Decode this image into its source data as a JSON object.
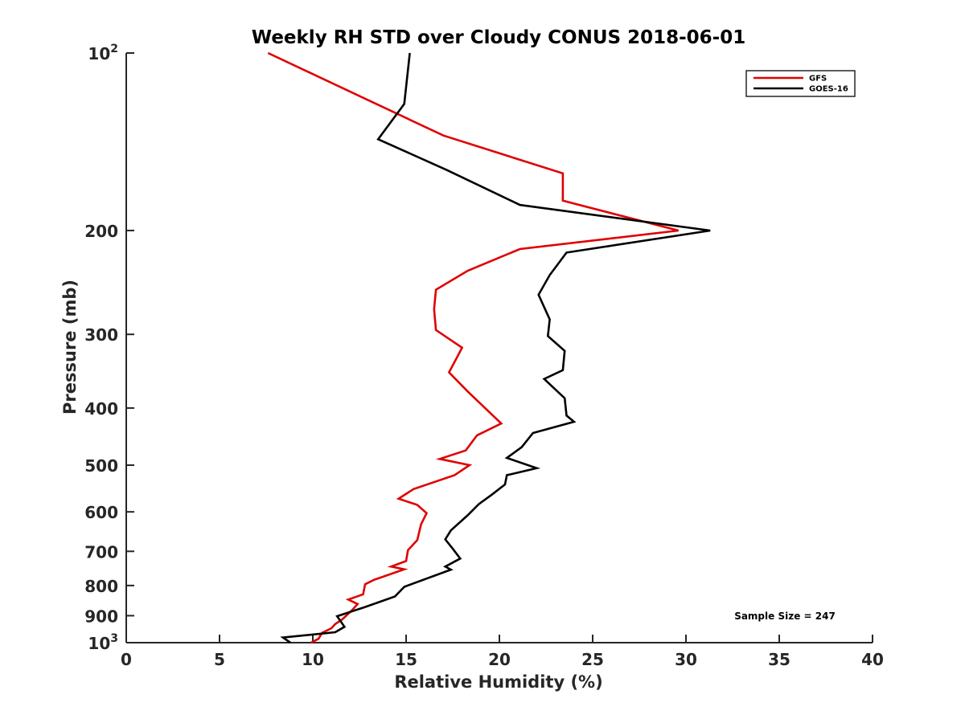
{
  "chart_data": {
    "type": "line",
    "title": "Weekly RH STD over Cloudy CONUS 2018-06-01",
    "xlabel": "Relative Humidity (%)",
    "ylabel": "Pressure (mb)",
    "xlim": [
      0,
      40
    ],
    "ylim": [
      100,
      1000
    ],
    "y_scale": "log",
    "y_reversed": true,
    "grid": false,
    "legend_position": "top-right",
    "x_ticks": [
      0,
      5,
      10,
      15,
      20,
      25,
      30,
      35,
      40
    ],
    "x_tick_labels": [
      "0",
      "5",
      "10",
      "15",
      "20",
      "25",
      "30",
      "35",
      "40"
    ],
    "y_ticks": [
      {
        "value": 100,
        "base": "10",
        "exp": "2"
      },
      {
        "value": 200,
        "label": "200"
      },
      {
        "value": 300,
        "label": "300"
      },
      {
        "value": 400,
        "label": "400"
      },
      {
        "value": 500,
        "label": "500"
      },
      {
        "value": 600,
        "label": "600"
      },
      {
        "value": 700,
        "label": "700"
      },
      {
        "value": 800,
        "label": "800"
      },
      {
        "value": 900,
        "label": "900"
      },
      {
        "value": 1000,
        "base": "10",
        "exp": "3"
      }
    ],
    "series": [
      {
        "name": "GFS",
        "color": "#e00000",
        "points": [
          [
            7.6,
            100
          ],
          [
            17.0,
            138
          ],
          [
            23.4,
            160
          ],
          [
            23.4,
            178
          ],
          [
            29.6,
            200
          ],
          [
            21.1,
            215
          ],
          [
            18.3,
            234
          ],
          [
            16.6,
            252
          ],
          [
            16.5,
            272
          ],
          [
            16.6,
            295
          ],
          [
            18.0,
            316
          ],
          [
            17.3,
            348
          ],
          [
            18.3,
            375
          ],
          [
            20.1,
            425
          ],
          [
            18.8,
            445
          ],
          [
            18.2,
            472
          ],
          [
            16.8,
            488
          ],
          [
            18.4,
            500
          ],
          [
            17.6,
            520
          ],
          [
            15.4,
            549
          ],
          [
            14.6,
            570
          ],
          [
            15.6,
            584
          ],
          [
            16.1,
            603
          ],
          [
            15.8,
            630
          ],
          [
            15.6,
            670
          ],
          [
            15.1,
            697
          ],
          [
            15.0,
            727
          ],
          [
            14.2,
            743
          ],
          [
            14.9,
            751
          ],
          [
            13.3,
            782
          ],
          [
            12.8,
            796
          ],
          [
            12.7,
            828
          ],
          [
            11.9,
            845
          ],
          [
            12.4,
            860
          ],
          [
            12.1,
            881
          ],
          [
            11.6,
            912
          ],
          [
            11.2,
            930
          ],
          [
            11.0,
            945
          ],
          [
            10.5,
            962
          ],
          [
            10.3,
            985
          ],
          [
            9.9,
            1000
          ]
        ]
      },
      {
        "name": "GOES-16",
        "color": "#000000",
        "points": [
          [
            15.2,
            100
          ],
          [
            14.9,
            122
          ],
          [
            13.5,
            140
          ],
          [
            17.2,
            158
          ],
          [
            21.1,
            181
          ],
          [
            31.3,
            200
          ],
          [
            23.6,
            218
          ],
          [
            22.7,
            238
          ],
          [
            22.1,
            257
          ],
          [
            22.7,
            283
          ],
          [
            22.6,
            302
          ],
          [
            23.5,
            320
          ],
          [
            23.4,
            345
          ],
          [
            22.4,
            357
          ],
          [
            23.5,
            385
          ],
          [
            23.6,
            412
          ],
          [
            24.0,
            422
          ],
          [
            21.8,
            441
          ],
          [
            21.2,
            466
          ],
          [
            20.4,
            486
          ],
          [
            22.0,
            506
          ],
          [
            20.4,
            520
          ],
          [
            20.3,
            539
          ],
          [
            19.6,
            561
          ],
          [
            18.9,
            582
          ],
          [
            18.3,
            608
          ],
          [
            17.4,
            645
          ],
          [
            17.1,
            668
          ],
          [
            17.5,
            693
          ],
          [
            17.9,
            720
          ],
          [
            17.1,
            743
          ],
          [
            17.4,
            752
          ],
          [
            14.9,
            804
          ],
          [
            14.4,
            835
          ],
          [
            12.8,
            870
          ],
          [
            11.3,
            902
          ],
          [
            11.7,
            940
          ],
          [
            11.2,
            960
          ],
          [
            8.4,
            980
          ],
          [
            8.8,
            1000
          ]
        ]
      }
    ],
    "annotation": "Sample Size = 247"
  }
}
